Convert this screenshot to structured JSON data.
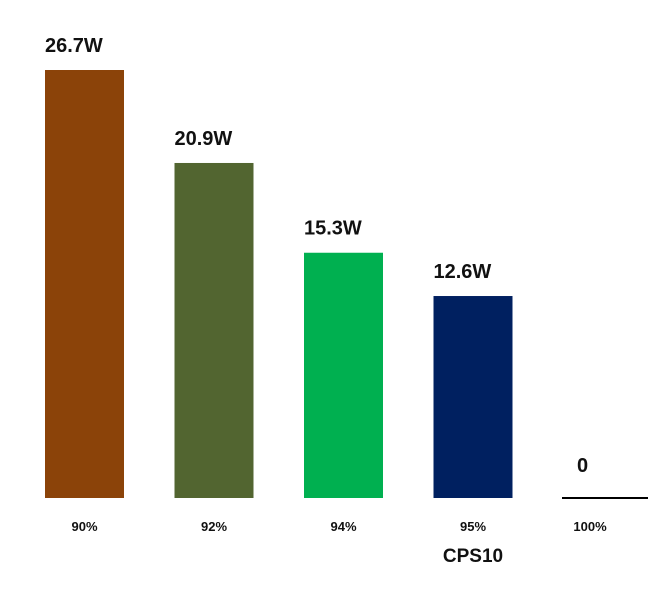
{
  "chart_data": {
    "type": "bar",
    "title": "",
    "xlabel": "",
    "ylabel": "",
    "categories": [
      "90%",
      "92%",
      "94%",
      "95%",
      "100%"
    ],
    "values": [
      26.7,
      20.9,
      15.3,
      12.6,
      0
    ],
    "data_labels": [
      "26.7W",
      "20.9W",
      "15.3W",
      "12.6W",
      "0"
    ],
    "colors": [
      "#8b4309",
      "#526530",
      "#00b050",
      "#002060",
      "#000000"
    ],
    "ylim": [
      0,
      26.7
    ],
    "grid": false,
    "legend": "none",
    "annotations": [
      {
        "text": "CPS10",
        "category": "95%"
      }
    ]
  }
}
